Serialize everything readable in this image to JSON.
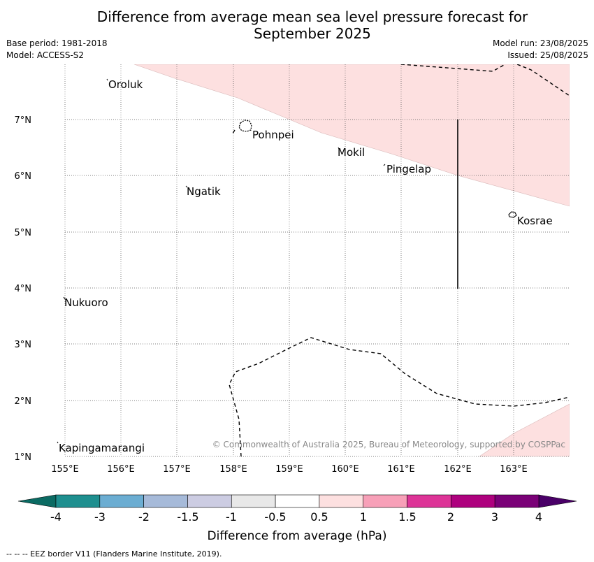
{
  "title_line1": "Difference from average mean sea level pressure forecast for",
  "title_line2": "September 2025",
  "base_period": "Base period: 1981-2018",
  "model": "Model: ACCESS-S2",
  "model_run": "Model run: 23/08/2025",
  "issued": "Issued: 25/08/2025",
  "lon_labels": [
    "155°E",
    "156°E",
    "157°E",
    "158°E",
    "159°E",
    "160°E",
    "161°E",
    "162°E",
    "163°E"
  ],
  "lat_labels": [
    "7°N",
    "6°N",
    "5°N",
    "4°N",
    "3°N",
    "2°N",
    "1°N"
  ],
  "places": [
    "Oroluk",
    "Pohnpei",
    "Mokil",
    "Pingelap",
    "Ngatik",
    "Kosrae",
    "Nukuoro",
    "Kapingamarangi"
  ],
  "copyright": "© Commonwealth of Australia 2025, Bureau of Meteorology, supported by COSPPac",
  "colorbar": {
    "title": "Difference from average (hPa)",
    "labels": [
      "-4",
      "-3",
      "-2",
      "-1.5",
      "-1",
      "-0.5",
      "0.5",
      "1",
      "1.5",
      "2",
      "3",
      "4"
    ],
    "colors": [
      "#1e8f8f",
      "#6badd2",
      "#a6bad9",
      "#cccce2",
      "#e8e8e8",
      "#ffffff",
      "#fde0e0",
      "#f7a0b8",
      "#dd3497",
      "#ae017e",
      "#7a0177"
    ],
    "under_color": "#0b6b63",
    "over_color": "#4a0068"
  },
  "footnote": "--  --  -- EEZ border V11 (Flanders Marine Institute, 2019)."
}
